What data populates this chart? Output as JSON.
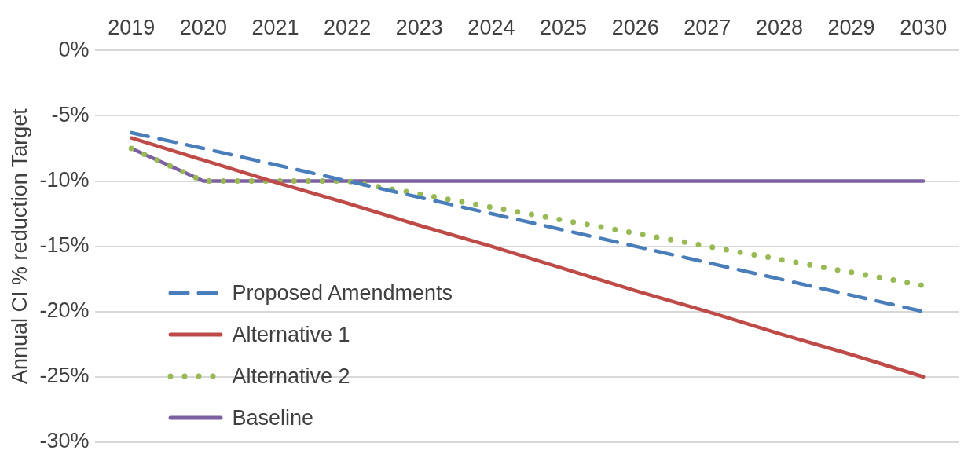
{
  "chart_data": {
    "type": "line",
    "ylabel": "Annual CI % reduction Target",
    "categories": [
      "2019",
      "2020",
      "2021",
      "2022",
      "2023",
      "2024",
      "2025",
      "2026",
      "2027",
      "2028",
      "2029",
      "2030"
    ],
    "series": [
      {
        "name": "Proposed Amendments",
        "color": "#4a7ebb",
        "line_style": "dashed",
        "values": [
          -6.3,
          -7.5,
          -8.75,
          -10,
          -11.25,
          -12.5,
          -13.75,
          -15,
          -16.25,
          -17.5,
          -18.75,
          -20
        ]
      },
      {
        "name": "Alternative 1",
        "color": "#be4b48",
        "line_style": "solid",
        "values": [
          -6.7,
          -8.4,
          -10.1,
          -11.7,
          -13.4,
          -15,
          -16.7,
          -18.4,
          -20,
          -21.7,
          -23.3,
          -25
        ]
      },
      {
        "name": "Alternative 2",
        "color": "#98b954",
        "line_style": "dotted",
        "values": [
          -7.5,
          -10,
          -10,
          -10,
          -11,
          -12,
          -13,
          -14,
          -15,
          -16,
          -17,
          -18
        ]
      },
      {
        "name": "Baseline",
        "color": "#7d60a0",
        "line_style": "solid",
        "values": [
          -7.5,
          -10,
          -10,
          -10,
          -10,
          -10,
          -10,
          -10,
          -10,
          -10,
          -10,
          -10
        ]
      }
    ],
    "ylim": [
      -30,
      0
    ],
    "yticks": [
      {
        "value": 0,
        "label": "0%"
      },
      {
        "value": -5,
        "label": "-5%"
      },
      {
        "value": -10,
        "label": "-10%"
      },
      {
        "value": -15,
        "label": "-15%"
      },
      {
        "value": -20,
        "label": "-20%"
      },
      {
        "value": -25,
        "label": "-25%"
      },
      {
        "value": -30,
        "label": "-30%"
      }
    ],
    "grid": "y",
    "legend": "bottom left",
    "marker": "none"
  }
}
